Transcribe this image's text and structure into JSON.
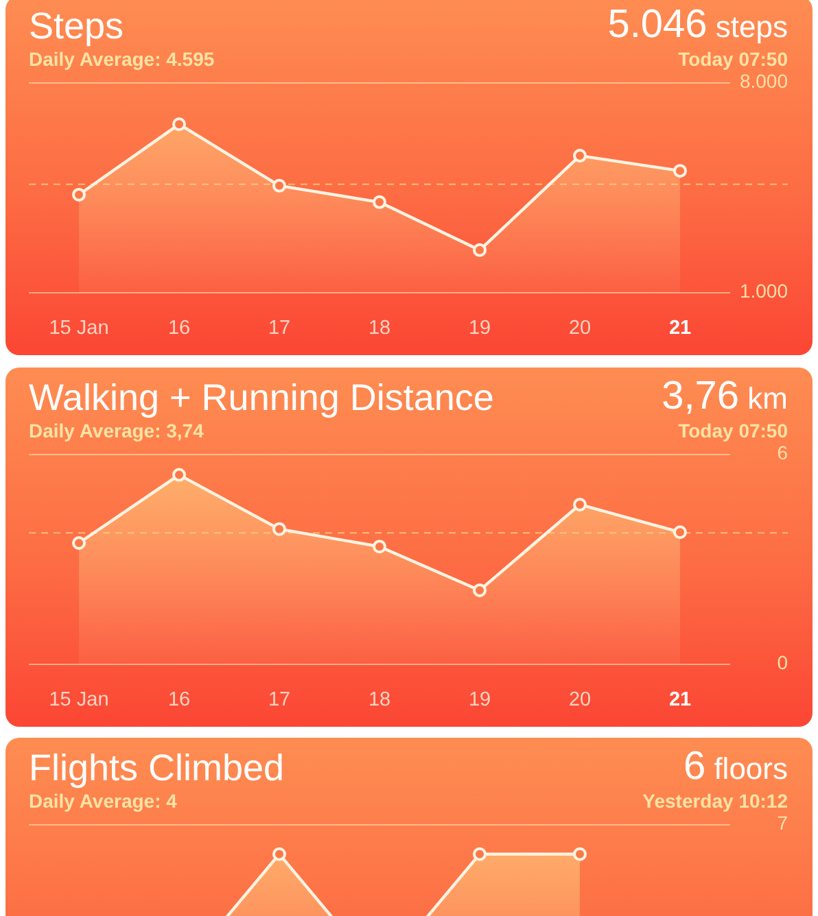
{
  "chart_data": [
    {
      "type": "area",
      "title": "Steps",
      "subtitle": "Daily Average: 4.595",
      "annotations": [
        "5.046 steps",
        "Today 07:50"
      ],
      "categories": [
        "15 Jan",
        "16",
        "17",
        "18",
        "19",
        "20",
        "21"
      ],
      "series": [
        {
          "color": "#fff3e2",
          "values": [
            4250,
            6600,
            4550,
            4000,
            2400,
            5550,
            5046
          ]
        }
      ],
      "ylim": [
        1000,
        8000
      ],
      "yticks": [
        {
          "value": 8000,
          "label": "8.000"
        },
        {
          "value": 1000,
          "label": "1.000"
        }
      ],
      "marker": "circle",
      "ref_lines": [
        {
          "axis": "y",
          "value": 4595,
          "line_style": "dashed",
          "color": "#f9bd78"
        }
      ]
    },
    {
      "type": "area",
      "title": "Walking + Running Distance",
      "subtitle": "Daily Average: 3,74",
      "annotations": [
        "3,76 km",
        "Today 07:50"
      ],
      "categories": [
        "15 Jan",
        "16",
        "17",
        "18",
        "19",
        "20",
        "21"
      ],
      "series": [
        {
          "color": "#fff3e2",
          "values": [
            3.45,
            5.4,
            3.85,
            3.35,
            2.1,
            4.55,
            3.76
          ]
        }
      ],
      "ylim": [
        0,
        6
      ],
      "yticks": [
        6,
        0
      ],
      "marker": "circle",
      "ref_lines": [
        {
          "axis": "y",
          "value": 3.74,
          "line_style": "dashed",
          "color": "#f9bd78"
        }
      ]
    },
    {
      "type": "area",
      "title": "Flights Climbed",
      "subtitle": "Daily Average: 4",
      "annotations": [
        "6 floors",
        "Yesterday 10:12"
      ],
      "categories": [
        null,
        null,
        null,
        null,
        null,
        null,
        null
      ],
      "series": [
        {
          "color": "#fff3e2",
          "values": [
            null,
            2,
            6,
            2,
            6,
            6,
            null
          ]
        }
      ],
      "ylim": [
        0,
        7
      ],
      "yticks": [
        7
      ],
      "marker": "circle"
    }
  ]
}
